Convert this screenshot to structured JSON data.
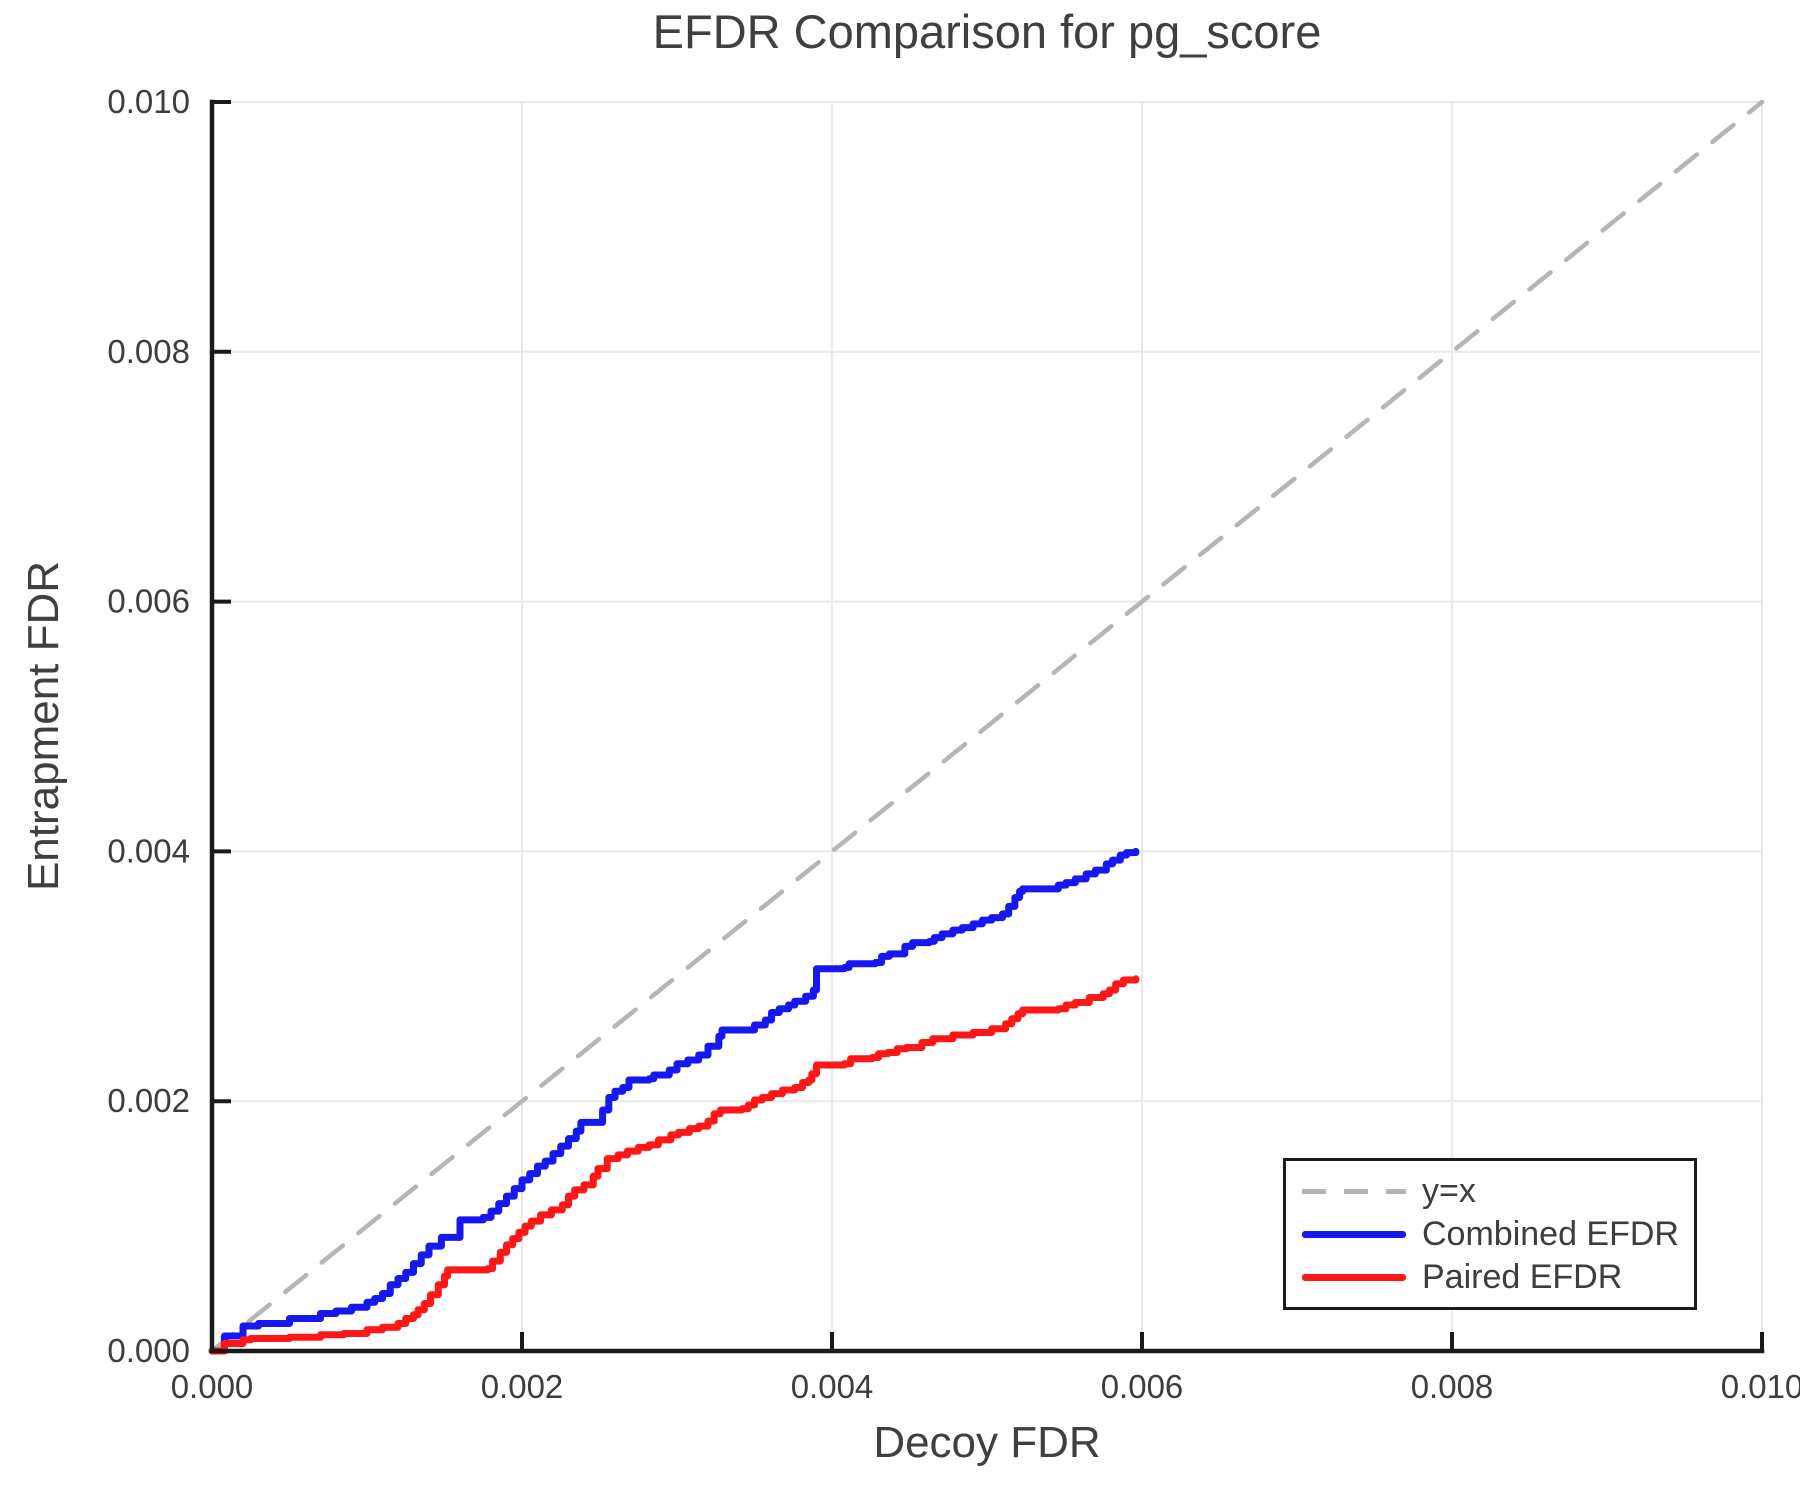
{
  "title": "EFDR Comparison for pg_score",
  "axes": {
    "xlabel": "Decoy FDR",
    "ylabel": "Entrapment FDR"
  },
  "colors": {
    "identity_line": "#b5b5b5",
    "combined_line": "#1717f0",
    "paired_line": "#ff1717",
    "grid": "#e9e9e9",
    "spine": "#1a1a1a",
    "text": "#3d3d3d"
  },
  "chart_data": {
    "type": "line",
    "title": "EFDR Comparison for pg_score",
    "xlabel": "Decoy FDR",
    "ylabel": "Entrapment FDR",
    "xlim": [
      0,
      0.01
    ],
    "ylim": [
      0,
      0.01
    ],
    "xticks": [
      0,
      0.002,
      0.004,
      0.006,
      0.008,
      0.01
    ],
    "yticks": [
      0,
      0.002,
      0.004,
      0.006,
      0.008,
      0.01
    ],
    "xtick_labels": [
      "0.000",
      "0.002",
      "0.004",
      "0.006",
      "0.008",
      "0.010"
    ],
    "ytick_labels": [
      "0.000",
      "0.002",
      "0.004",
      "0.006",
      "0.008",
      "0.010"
    ],
    "grid": true,
    "legend_position": "lower right",
    "series": [
      {
        "name": "y=x",
        "style": "dashed",
        "step": false,
        "color": "#b5b5b5",
        "points": [
          [
            0,
            0
          ],
          [
            0.01,
            0.01
          ]
        ]
      },
      {
        "name": "Combined EFDR",
        "style": "solid",
        "step": true,
        "color": "#1717f0",
        "points": [
          [
            0,
            0
          ],
          [
            8e-05,
            0.00012
          ],
          [
            0.0002,
            0.0002
          ],
          [
            0.0003,
            0.00022
          ],
          [
            0.0005,
            0.00026
          ],
          [
            0.0007,
            0.0003
          ],
          [
            0.0008,
            0.00032
          ],
          [
            0.0009,
            0.00035
          ],
          [
            0.001,
            0.00039
          ],
          [
            0.00105,
            0.00042
          ],
          [
            0.0011,
            0.00046
          ],
          [
            0.00115,
            0.00053
          ],
          [
            0.0012,
            0.00058
          ],
          [
            0.00125,
            0.00063
          ],
          [
            0.0013,
            0.0007
          ],
          [
            0.00135,
            0.00077
          ],
          [
            0.0014,
            0.00084
          ],
          [
            0.00148,
            0.00091
          ],
          [
            0.0016,
            0.00105
          ],
          [
            0.00175,
            0.00107
          ],
          [
            0.0018,
            0.00112
          ],
          [
            0.00185,
            0.00118
          ],
          [
            0.0019,
            0.00124
          ],
          [
            0.00195,
            0.0013
          ],
          [
            0.002,
            0.00137
          ],
          [
            0.00205,
            0.00142
          ],
          [
            0.0021,
            0.00148
          ],
          [
            0.00215,
            0.00152
          ],
          [
            0.0022,
            0.00158
          ],
          [
            0.00225,
            0.00164
          ],
          [
            0.0023,
            0.0017
          ],
          [
            0.00235,
            0.00176
          ],
          [
            0.00238,
            0.00183
          ],
          [
            0.00249,
            0.00183
          ],
          [
            0.00252,
            0.00193
          ],
          [
            0.00256,
            0.00203
          ],
          [
            0.0026,
            0.00208
          ],
          [
            0.00265,
            0.00211
          ],
          [
            0.00269,
            0.00217
          ],
          [
            0.00282,
            0.00218
          ],
          [
            0.00285,
            0.00221
          ],
          [
            0.00295,
            0.00225
          ],
          [
            0.003,
            0.0023
          ],
          [
            0.00307,
            0.00233
          ],
          [
            0.00314,
            0.00237
          ],
          [
            0.0032,
            0.00244
          ],
          [
            0.00327,
            0.00252
          ],
          [
            0.00329,
            0.00257
          ],
          [
            0.00344,
            0.00257
          ],
          [
            0.0035,
            0.00261
          ],
          [
            0.00357,
            0.00265
          ],
          [
            0.00361,
            0.00271
          ],
          [
            0.00366,
            0.00274
          ],
          [
            0.00372,
            0.00277
          ],
          [
            0.00376,
            0.0028
          ],
          [
            0.00383,
            0.00284
          ],
          [
            0.00388,
            0.00289
          ],
          [
            0.0039,
            0.00306
          ],
          [
            0.00408,
            0.00307
          ],
          [
            0.00411,
            0.0031
          ],
          [
            0.00428,
            0.00311
          ],
          [
            0.00432,
            0.00316
          ],
          [
            0.00437,
            0.00318
          ],
          [
            0.00447,
            0.00324
          ],
          [
            0.00452,
            0.00327
          ],
          [
            0.00463,
            0.00328
          ],
          [
            0.00466,
            0.00331
          ],
          [
            0.00471,
            0.00334
          ],
          [
            0.00478,
            0.00337
          ],
          [
            0.00484,
            0.00339
          ],
          [
            0.00491,
            0.00342
          ],
          [
            0.00497,
            0.00345
          ],
          [
            0.00503,
            0.00347
          ],
          [
            0.0051,
            0.0035
          ],
          [
            0.00514,
            0.00356
          ],
          [
            0.00518,
            0.00363
          ],
          [
            0.00521,
            0.00368
          ],
          [
            0.00523,
            0.0037
          ],
          [
            0.00542,
            0.0037
          ],
          [
            0.00546,
            0.00373
          ],
          [
            0.00551,
            0.00375
          ],
          [
            0.00557,
            0.00378
          ],
          [
            0.00564,
            0.00382
          ],
          [
            0.0057,
            0.00385
          ],
          [
            0.00577,
            0.0039
          ],
          [
            0.00581,
            0.00393
          ],
          [
            0.00586,
            0.00397
          ],
          [
            0.0059,
            0.00399
          ],
          [
            0.00596,
            0.004
          ]
        ]
      },
      {
        "name": "Paired EFDR",
        "style": "solid",
        "step": true,
        "color": "#ff1717",
        "points": [
          [
            0,
            0
          ],
          [
            8e-05,
            6e-05
          ],
          [
            0.0002,
            9e-05
          ],
          [
            0.00025,
            0.0001
          ],
          [
            0.0005,
            0.00011
          ],
          [
            0.0007,
            0.00013
          ],
          [
            0.00085,
            0.00014
          ],
          [
            0.001,
            0.00017
          ],
          [
            0.0011,
            0.00019
          ],
          [
            0.0012,
            0.00022
          ],
          [
            0.00125,
            0.00026
          ],
          [
            0.0013,
            0.00029
          ],
          [
            0.00133,
            0.00033
          ],
          [
            0.00137,
            0.00038
          ],
          [
            0.00141,
            0.00045
          ],
          [
            0.00146,
            0.00053
          ],
          [
            0.0015,
            0.0006
          ],
          [
            0.00152,
            0.00065
          ],
          [
            0.00178,
            0.00066
          ],
          [
            0.00181,
            0.00072
          ],
          [
            0.00186,
            0.00079
          ],
          [
            0.0019,
            0.00085
          ],
          [
            0.00194,
            0.0009
          ],
          [
            0.00198,
            0.00095
          ],
          [
            0.00202,
            0.001
          ],
          [
            0.00206,
            0.00104
          ],
          [
            0.00212,
            0.00109
          ],
          [
            0.00219,
            0.00113
          ],
          [
            0.00226,
            0.00117
          ],
          [
            0.0023,
            0.00124
          ],
          [
            0.00234,
            0.00129
          ],
          [
            0.0024,
            0.00133
          ],
          [
            0.00246,
            0.0014
          ],
          [
            0.00249,
            0.00146
          ],
          [
            0.00255,
            0.00154
          ],
          [
            0.00262,
            0.00157
          ],
          [
            0.00268,
            0.0016
          ],
          [
            0.00275,
            0.00163
          ],
          [
            0.00282,
            0.00165
          ],
          [
            0.00288,
            0.00169
          ],
          [
            0.00296,
            0.00173
          ],
          [
            0.00301,
            0.00175
          ],
          [
            0.00308,
            0.00178
          ],
          [
            0.00314,
            0.0018
          ],
          [
            0.0032,
            0.00184
          ],
          [
            0.00324,
            0.0019
          ],
          [
            0.00328,
            0.00193
          ],
          [
            0.00342,
            0.00194
          ],
          [
            0.00346,
            0.00197
          ],
          [
            0.0035,
            0.00201
          ],
          [
            0.00355,
            0.00203
          ],
          [
            0.00361,
            0.00206
          ],
          [
            0.00368,
            0.00209
          ],
          [
            0.00376,
            0.00211
          ],
          [
            0.00381,
            0.00215
          ],
          [
            0.00385,
            0.00217
          ],
          [
            0.00387,
            0.00222
          ],
          [
            0.0039,
            0.00229
          ],
          [
            0.00408,
            0.0023
          ],
          [
            0.00412,
            0.00234
          ],
          [
            0.00426,
            0.00235
          ],
          [
            0.0043,
            0.00238
          ],
          [
            0.00436,
            0.00239
          ],
          [
            0.00442,
            0.00242
          ],
          [
            0.00448,
            0.00243
          ],
          [
            0.00458,
            0.00247
          ],
          [
            0.00465,
            0.0025
          ],
          [
            0.00478,
            0.00253
          ],
          [
            0.00491,
            0.00255
          ],
          [
            0.00503,
            0.00258
          ],
          [
            0.00512,
            0.00262
          ],
          [
            0.00516,
            0.00266
          ],
          [
            0.0052,
            0.0027
          ],
          [
            0.00523,
            0.00273
          ],
          [
            0.00542,
            0.00273
          ],
          [
            0.00546,
            0.00274
          ],
          [
            0.00551,
            0.00277
          ],
          [
            0.00557,
            0.00279
          ],
          [
            0.00566,
            0.00283
          ],
          [
            0.00575,
            0.00286
          ],
          [
            0.00579,
            0.00289
          ],
          [
            0.00583,
            0.00294
          ],
          [
            0.00588,
            0.00297
          ],
          [
            0.00596,
            0.00298
          ]
        ]
      }
    ]
  }
}
